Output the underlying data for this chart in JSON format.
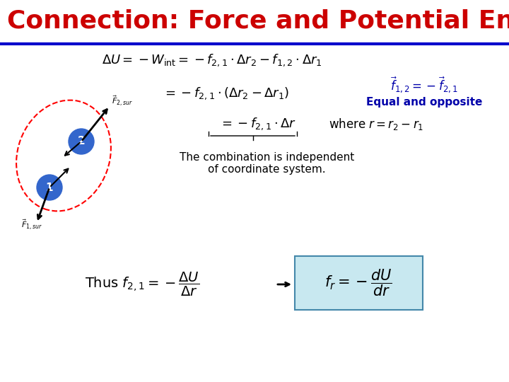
{
  "title": "Connection: Force and Potential Energy",
  "title_color": "#CC0000",
  "title_bg": "#FFFFFF",
  "divider_color": "#0000CC",
  "bg_color": "#FFFFFF",
  "eq_and_opp_text": "Equal and opposite",
  "combo_text": "The combination is independent\nof coordinate system.",
  "eq_color": "#0000AA",
  "eq_opp_color": "#0000AA",
  "box_bg": "#C8E8F0",
  "box_edge": "#4488AA"
}
